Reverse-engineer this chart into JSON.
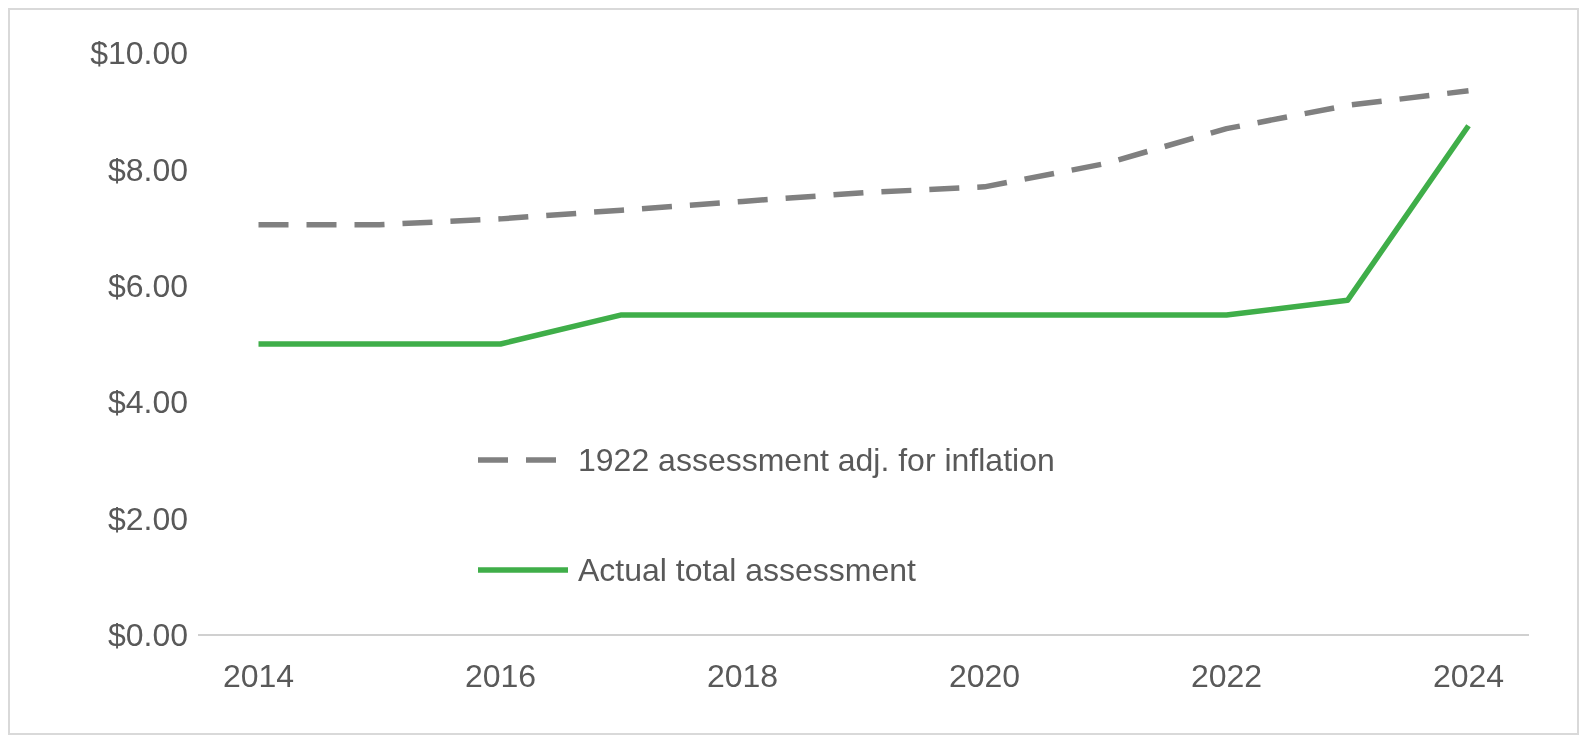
{
  "chart_data": {
    "type": "line",
    "x": [
      2014,
      2015,
      2016,
      2017,
      2018,
      2019,
      2020,
      2021,
      2022,
      2023,
      2024
    ],
    "series": [
      {
        "name": "1922 assessment adj. for inflation",
        "color": "#808080",
        "line_style": "dashed",
        "values": [
          7.05,
          7.05,
          7.15,
          7.3,
          7.45,
          7.6,
          7.7,
          8.1,
          8.7,
          9.1,
          9.35
        ]
      },
      {
        "name": "Actual total assessment",
        "color": "#3fae49",
        "line_style": "solid",
        "values": [
          5.0,
          5.0,
          5.0,
          5.5,
          5.5,
          5.5,
          5.5,
          5.5,
          5.5,
          5.75,
          8.75
        ]
      }
    ],
    "xlim": [
      2013.5,
      2024.5
    ],
    "xticks": [
      2014,
      2016,
      2018,
      2020,
      2022,
      2024
    ],
    "ylim": [
      0,
      10
    ],
    "yticks": [
      {
        "value": 0,
        "label": "$0.00"
      },
      {
        "value": 2,
        "label": "$2.00"
      },
      {
        "value": 4,
        "label": "$4.00"
      },
      {
        "value": 6,
        "label": "$6.00"
      },
      {
        "value": 8,
        "label": "$8.00"
      },
      {
        "value": 10,
        "label": "$10.00"
      }
    ],
    "grid": false,
    "legend": "center",
    "marker": "none"
  }
}
